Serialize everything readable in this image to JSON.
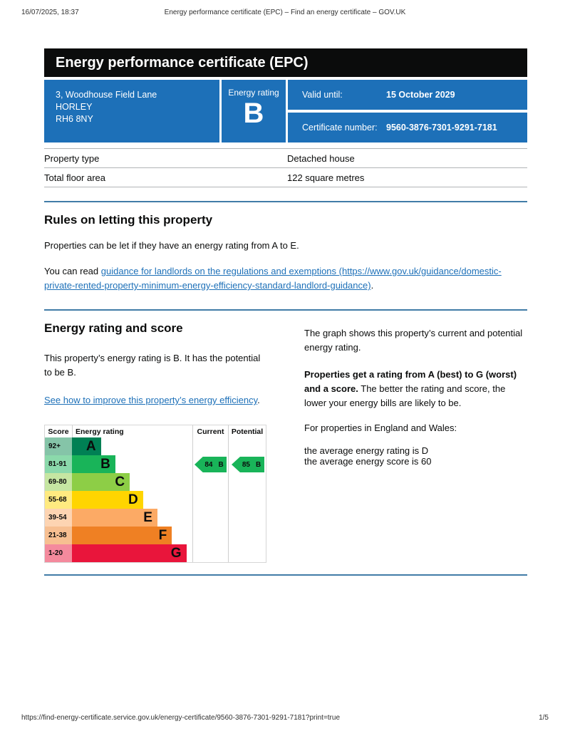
{
  "print_header": {
    "datetime": "16/07/2025, 18:37",
    "title": "Energy performance certificate (EPC) – Find an energy certificate – GOV.UK"
  },
  "print_footer": {
    "url": "https://find-energy-certificate.service.gov.uk/energy-certificate/9560-3876-7301-9291-7181?print=true",
    "page_indicator": "1/5"
  },
  "banner": {
    "title": "Energy performance certificate (EPC)"
  },
  "summary": {
    "address_lines": [
      "3, Woodhouse Field Lane",
      "HORLEY",
      "RH6 8NY"
    ],
    "energy_rating_label": "Energy rating",
    "energy_rating": "B",
    "valid_until_label": "Valid until:",
    "valid_until": "15 October 2029",
    "certificate_number_label": "Certificate number:",
    "certificate_number": "9560-3876-7301-9291-7181",
    "panel_color": "#1d70b8"
  },
  "property_table": {
    "rows": [
      {
        "label": "Property type",
        "value": "Detached house"
      },
      {
        "label": "Total floor area",
        "value": "122 square metres"
      }
    ]
  },
  "rules_section": {
    "heading": "Rules on letting this property",
    "paragraph1": "Properties can be let if they have an energy rating from A to E.",
    "paragraph2_prefix": "You can read ",
    "paragraph2_link": "guidance for landlords on the regulations and exemptions (https://www.gov.uk/guidance/domestic-private-rented-property-minimum-energy-efficiency-standard-landlord-guidance)",
    "paragraph2_suffix": "."
  },
  "rating_section": {
    "heading": "Energy rating and score",
    "paragraph1": "This property’s energy rating is B. It has the potential to be B.",
    "improve_link": "See how to improve this property’s energy efficiency",
    "improve_link_suffix": ".",
    "right_paragraph1": "The graph shows this property’s current and potential energy rating.",
    "right_bold": "Properties get a rating from A (best) to G (worst) and a score.",
    "right_after_bold": " The better the rating and score, the lower your energy bills are likely to be.",
    "right_paragraph3": "For properties in England and Wales:",
    "avg_rating_line": "the average energy rating is D",
    "avg_score_line": "the average energy score is 60"
  },
  "chart_data": {
    "type": "bar",
    "title": "EPC energy rating bands",
    "columns": [
      "Score",
      "Energy rating",
      "Current",
      "Potential"
    ],
    "bands": [
      {
        "letter": "A",
        "score": "92+",
        "color": "#008054",
        "tint": "#85c4a8",
        "width_pct": 24
      },
      {
        "letter": "B",
        "score": "81-91",
        "color": "#19b459",
        "tint": "#8bd9ab",
        "width_pct": 36
      },
      {
        "letter": "C",
        "score": "69-80",
        "color": "#8dce46",
        "tint": "#c6e6a2",
        "width_pct": 48
      },
      {
        "letter": "D",
        "score": "55-68",
        "color": "#ffd500",
        "tint": "#ffea80",
        "width_pct": 59
      },
      {
        "letter": "E",
        "score": "39-54",
        "color": "#fcaa65",
        "tint": "#fdd4b2",
        "width_pct": 71
      },
      {
        "letter": "F",
        "score": "21-38",
        "color": "#ef8023",
        "tint": "#f7bf91",
        "width_pct": 83
      },
      {
        "letter": "G",
        "score": "1-20",
        "color": "#e9153b",
        "tint": "#f48a9d",
        "width_pct": 95
      }
    ],
    "current": {
      "score": "84",
      "band": "B",
      "color": "#19b459"
    },
    "potential": {
      "score": "85",
      "band": "B",
      "color": "#19b459"
    }
  }
}
